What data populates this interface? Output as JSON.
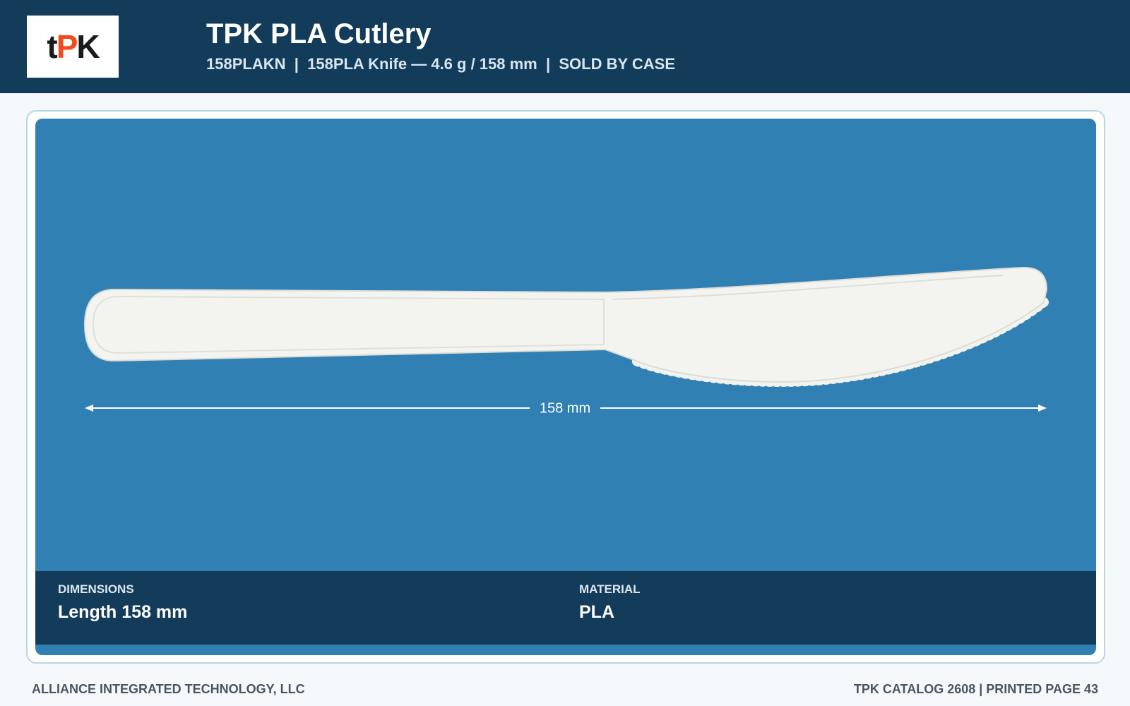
{
  "header": {
    "logo": [
      "t",
      "P",
      "K"
    ],
    "title": "TPK PLA Cutlery",
    "subtitle": [
      "158PLAKN",
      "158PLA Knife — 4.6 g / 158 mm",
      "SOLD BY CASE"
    ],
    "separator": "|"
  },
  "figure": {
    "dimension_label": "158 mm"
  },
  "specs": [
    {
      "label": "DIMENSIONS",
      "value": "Length 158 mm"
    },
    {
      "label": "MATERIAL",
      "value": "PLA"
    }
  ],
  "footer": {
    "left": "ALLIANCE INTEGRATED TECHNOLOGY, LLC",
    "right": "TPK CATALOG 2608 | PRINTED PAGE 43"
  }
}
